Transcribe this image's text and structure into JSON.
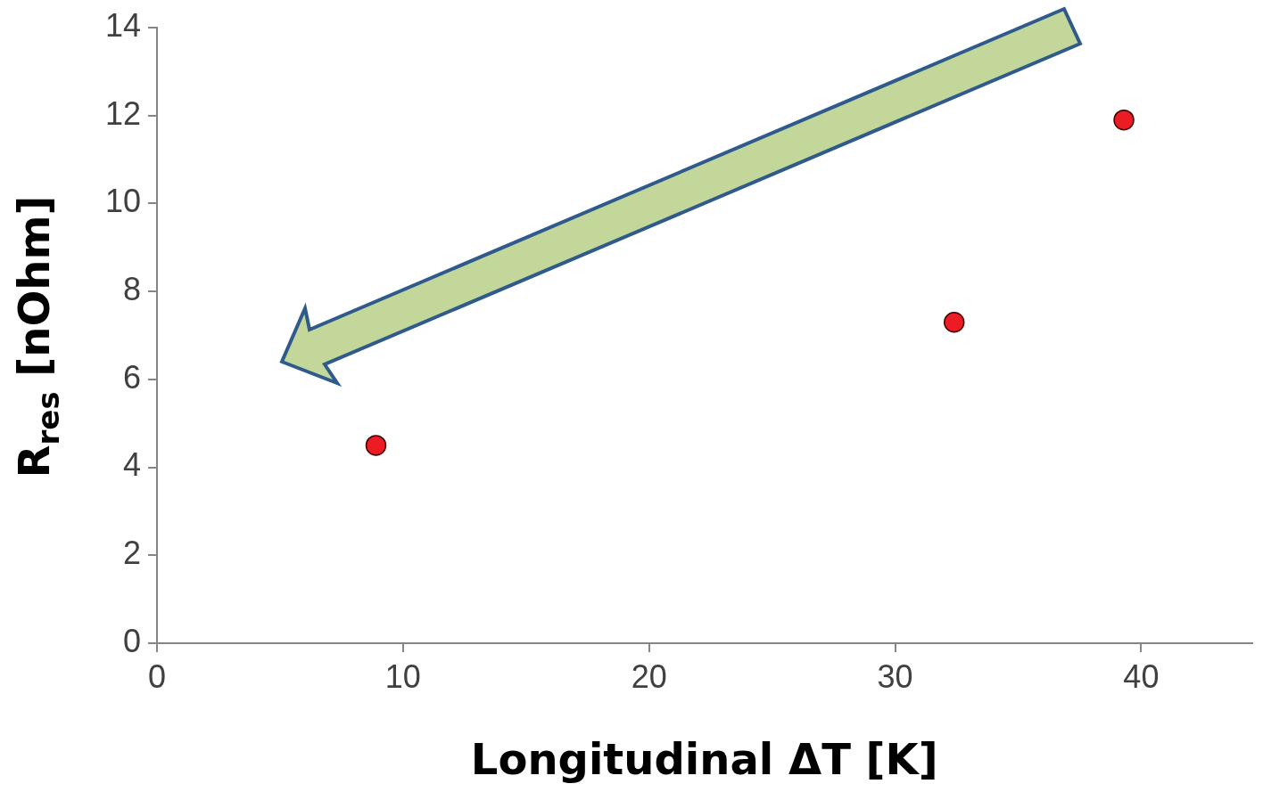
{
  "chart_data": {
    "type": "scatter",
    "xlabel": "Longitudinal ΔT [K]",
    "ylabel": "R$_{res}$ [nOhm]",
    "x": [
      8.9,
      32.4,
      39.3
    ],
    "values": [
      4.5,
      7.3,
      11.9
    ],
    "color": "#ed1c24",
    "marker": "circle",
    "xlim": [
      0,
      44.5
    ],
    "xticks": [
      0,
      10,
      20,
      30,
      40
    ],
    "ylim": [
      0,
      14
    ],
    "yticks": [
      0,
      2,
      4,
      6,
      8,
      10,
      12,
      14
    ],
    "grid": false,
    "legend": false
  }
}
